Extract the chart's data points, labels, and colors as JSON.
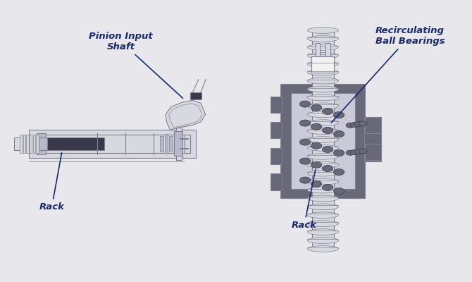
{
  "bg_color": "#e8e8ec",
  "line_color": "#b0b0b8",
  "dark_line": "#808090",
  "fill_light": "#d8d8e0",
  "fill_mid": "#b8b8c8",
  "fill_dark": "#686878",
  "fill_darker": "#505060",
  "black_part": "#383848",
  "text_color": "#1a2a6e",
  "arrow_color": "#1a2a6e",
  "label_pinion": "Pinion Input\nShaft",
  "label_rack_left": "Rack",
  "label_rack_right": "Rack",
  "label_bearings": "Recirculating\nBall Bearings"
}
